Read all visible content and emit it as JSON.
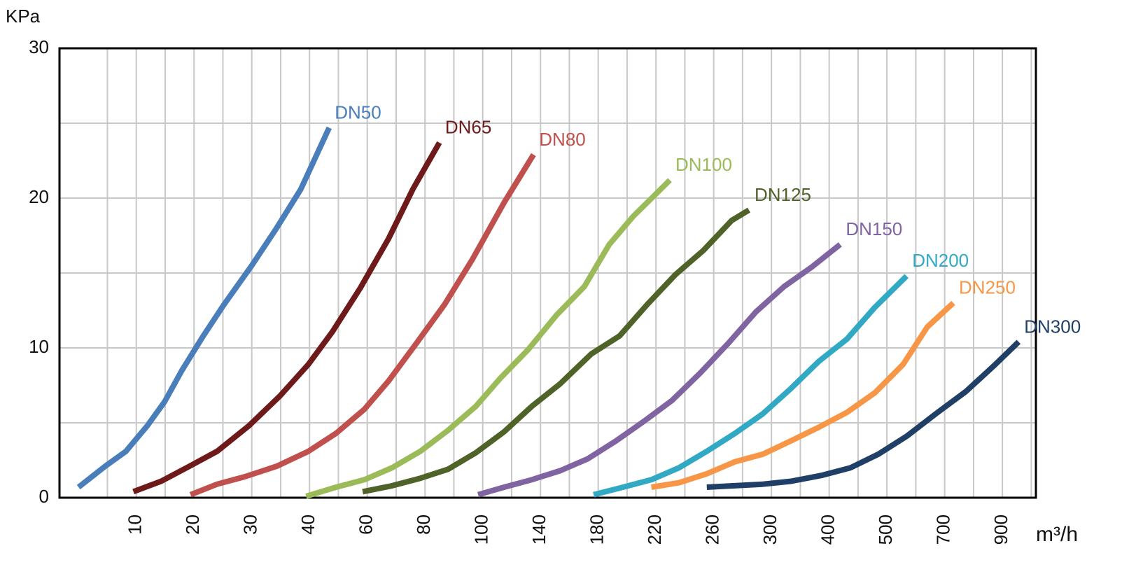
{
  "chart_data": {
    "type": "line",
    "x_label": "m³/h",
    "y_label": "KPa",
    "xlim": [
      -3.3,
      1016
    ],
    "ylim": [
      0,
      30
    ],
    "xticks": [
      10,
      20,
      30,
      40,
      60,
      80,
      100,
      140,
      180,
      220,
      260,
      300,
      400,
      500,
      700,
      900
    ],
    "yticks": [
      0,
      10,
      20,
      30
    ],
    "grid": true,
    "series": [
      {
        "name": "DN50",
        "color": "#4a7ebb",
        "x": [
          0,
          4.6,
          8.2,
          11.9,
          14.9,
          17.9,
          21.6,
          25.2,
          30,
          34.3,
          38.5,
          46.8
        ],
        "values": [
          0.7,
          2.1,
          3.1,
          4.8,
          6.4,
          8.5,
          10.8,
          12.9,
          15.5,
          18.0,
          20.6,
          24.7
        ]
      },
      {
        "name": "DN65",
        "color": "#6e1a1a",
        "x": [
          9.5,
          14.3,
          19.2,
          24,
          29.5,
          34.9,
          39.8,
          48,
          57.6,
          67.4,
          75.8,
          85
        ],
        "values": [
          0.4,
          1.1,
          2.1,
          3.1,
          4.8,
          6.8,
          8.9,
          11.1,
          14.0,
          17.3,
          20.6,
          23.7
        ]
      },
      {
        "name": "DN80",
        "color": "#c0504d",
        "x": [
          19.4,
          24,
          28.8,
          34.3,
          39.8,
          49.2,
          59,
          67.4,
          77,
          86.8,
          96.4,
          114.8,
          135.2
        ],
        "values": [
          0.2,
          0.9,
          1.4,
          2.1,
          3.1,
          4.3,
          5.9,
          7.8,
          10.3,
          12.9,
          15.9,
          19.7,
          22.9
        ]
      },
      {
        "name": "DN100",
        "color": "#9bbb59",
        "x": [
          39.4,
          49.2,
          59,
          68.6,
          78.4,
          88,
          97.6,
          112.4,
          131.6,
          151.2,
          170.4,
          187.6,
          204.4,
          219.2,
          229.6
        ],
        "values": [
          0.1,
          0.7,
          1.2,
          2.0,
          3.1,
          4.5,
          6.1,
          8.0,
          9.9,
          12.2,
          14.1,
          16.9,
          18.8,
          20.2,
          21.2
        ]
      },
      {
        "name": "DN125",
        "color": "#4f6228",
        "x": [
          58.4,
          68.6,
          78.4,
          88,
          97.6,
          114.8,
          134,
          153.6,
          175.2,
          194.8,
          214,
          233.6,
          252.8,
          272.4,
          284.4
        ],
        "values": [
          0.4,
          0.8,
          1.3,
          1.9,
          3.0,
          4.4,
          6.1,
          7.6,
          9.6,
          10.8,
          12.9,
          14.9,
          16.5,
          18.5,
          19.2
        ]
      },
      {
        "name": "DN150",
        "color": "#8064a2",
        "x": [
          98.4,
          114.8,
          134,
          153.6,
          172.8,
          192.4,
          211.6,
          231.2,
          250.4,
          270,
          289.2,
          322,
          370,
          419
        ],
        "values": [
          0.2,
          0.7,
          1.2,
          1.8,
          2.6,
          3.8,
          5.1,
          6.5,
          8.3,
          10.3,
          12.4,
          14.1,
          15.4,
          16.9
        ]
      },
      {
        "name": "DN200",
        "color": "#31a9c4",
        "x": [
          176.8,
          197.2,
          216.8,
          236,
          255.2,
          274.8,
          294,
          334,
          382,
          431,
          479,
          568
        ],
        "values": [
          0.2,
          0.7,
          1.2,
          2.0,
          3.1,
          4.3,
          5.6,
          7.3,
          9.1,
          10.6,
          12.7,
          14.8
        ]
      },
      {
        "name": "DN250",
        "color": "#f79646",
        "x": [
          216.8,
          236,
          255.2,
          274.8,
          294,
          334,
          382,
          431,
          479,
          556,
          640,
          730
        ],
        "values": [
          0.7,
          1.0,
          1.6,
          2.4,
          2.9,
          3.8,
          4.7,
          5.7,
          7.0,
          8.9,
          11.4,
          13.0
        ]
      },
      {
        "name": "DN300",
        "color": "#1f3f66",
        "x": [
          255.2,
          294,
          334,
          388,
          437,
          485,
          568,
          676,
          774,
          870,
          956
        ],
        "values": [
          0.7,
          0.9,
          1.1,
          1.5,
          2.0,
          2.9,
          4.1,
          5.7,
          7.1,
          8.8,
          10.4
        ]
      }
    ]
  }
}
